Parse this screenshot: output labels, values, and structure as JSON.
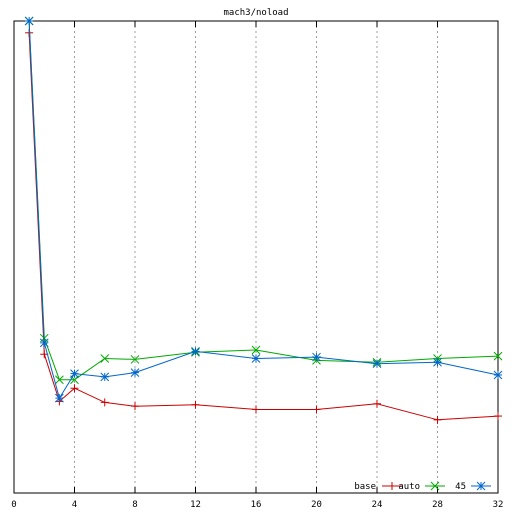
{
  "chart_data": {
    "type": "line",
    "title": "mach3/noload",
    "xlabel": "",
    "ylabel": "",
    "xlim": [
      0,
      32
    ],
    "ylim": [
      0,
      100
    ],
    "xticks": [
      0,
      4,
      8,
      12,
      16,
      20,
      24,
      28,
      32
    ],
    "grid": "vertical dashed",
    "legend_position": "bottom-right",
    "series": [
      {
        "name": "base",
        "color": "#cc0000",
        "marker": "plus",
        "x": [
          1,
          2,
          3,
          4,
          6,
          8,
          12,
          16,
          20,
          24,
          28,
          32
        ],
        "y": [
          97.5,
          29.4,
          19.4,
          22.2,
          19.2,
          18.4,
          18.7,
          17.7,
          17.7,
          18.9,
          15.5,
          16.3
        ]
      },
      {
        "name": "auto",
        "color": "#00aa00",
        "marker": "x",
        "x": [
          1,
          2,
          3,
          4,
          6,
          8,
          12,
          16,
          20,
          24,
          28,
          32
        ],
        "y": [
          100.0,
          32.8,
          24.0,
          24.0,
          28.5,
          28.3,
          29.8,
          30.3,
          28.1,
          27.7,
          28.5,
          29.0
        ]
      },
      {
        "name": "45",
        "color": "#0066cc",
        "marker": "asterisk",
        "x": [
          1,
          2,
          3,
          4,
          6,
          8,
          12,
          16,
          20,
          24,
          28,
          32
        ],
        "y": [
          100.0,
          31.8,
          20.1,
          25.3,
          24.6,
          25.5,
          30.0,
          28.5,
          28.8,
          27.4,
          27.7,
          25.0
        ]
      }
    ]
  }
}
